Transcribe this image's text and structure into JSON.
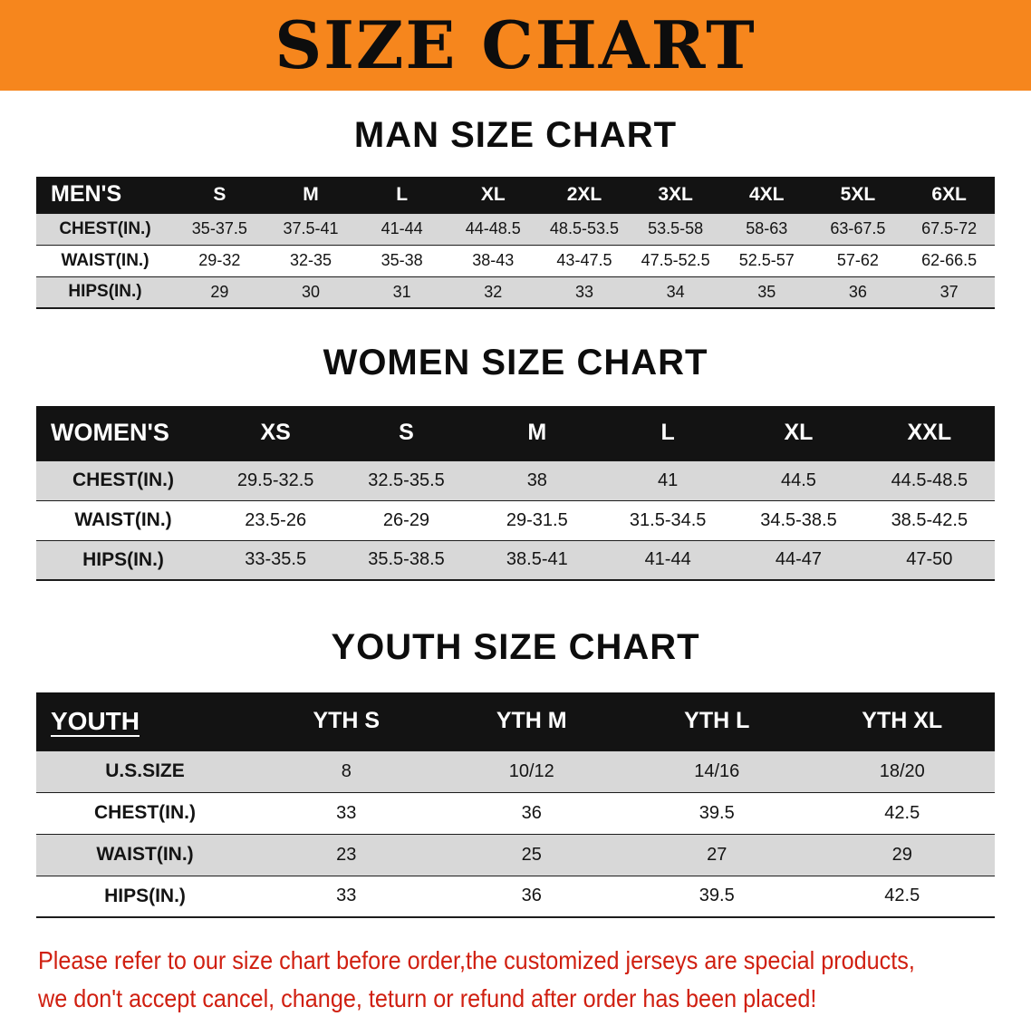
{
  "banner": {
    "title": "SIZE CHART"
  },
  "colors": {
    "banner_bg": "#f6861d",
    "header_bg": "#131313",
    "header_text": "#ffffff",
    "stripe_gray": "#d8d8d8",
    "row_line": "#1c1c1c",
    "notice_red": "#d01f10"
  },
  "sections": [
    {
      "id": "men",
      "heading": "MAN SIZE CHART",
      "table": {
        "header": [
          "MEN'S",
          "S",
          "M",
          "L",
          "XL",
          "2XL",
          "3XL",
          "4XL",
          "5XL",
          "6XL"
        ],
        "rows": [
          [
            "CHEST(IN.)",
            "35-37.5",
            "37.5-41",
            "41-44",
            "44-48.5",
            "48.5-53.5",
            "53.5-58",
            "58-63",
            "63-67.5",
            "67.5-72"
          ],
          [
            "WAIST(IN.)",
            "29-32",
            "32-35",
            "35-38",
            "38-43",
            "43-47.5",
            "47.5-52.5",
            "52.5-57",
            "57-62",
            "62-66.5"
          ],
          [
            "HIPS(IN.)",
            "29",
            "30",
            "31",
            "32",
            "33",
            "34",
            "35",
            "36",
            "37"
          ]
        ]
      }
    },
    {
      "id": "women",
      "heading": "WOMEN SIZE CHART",
      "table": {
        "header": [
          "WOMEN'S",
          "XS",
          "S",
          "M",
          "L",
          "XL",
          "XXL"
        ],
        "rows": [
          [
            "CHEST(IN.)",
            "29.5-32.5",
            "32.5-35.5",
            "38",
            "41",
            "44.5",
            "44.5-48.5"
          ],
          [
            "WAIST(IN.)",
            "23.5-26",
            "26-29",
            "29-31.5",
            "31.5-34.5",
            "34.5-38.5",
            "38.5-42.5"
          ],
          [
            "HIPS(IN.)",
            "33-35.5",
            "35.5-38.5",
            "38.5-41",
            "41-44",
            "44-47",
            "47-50"
          ]
        ]
      }
    },
    {
      "id": "youth",
      "heading": "YOUTH SIZE CHART",
      "table": {
        "header": [
          "YOUTH",
          "YTH S",
          "YTH M",
          "YTH L",
          "YTH XL"
        ],
        "rows": [
          [
            "U.S.SIZE",
            "8",
            "10/12",
            "14/16",
            "18/20"
          ],
          [
            "CHEST(IN.)",
            "33",
            "36",
            "39.5",
            "42.5"
          ],
          [
            "WAIST(IN.)",
            "23",
            "25",
            "27",
            "29"
          ],
          [
            "HIPS(IN.)",
            "33",
            "36",
            "39.5",
            "42.5"
          ]
        ]
      }
    }
  ],
  "footer": {
    "line1": "Please refer to our size chart before order,the customized jerseys are special products,",
    "line2": "we don't accept cancel, change, teturn or refund after order has been placed!"
  }
}
